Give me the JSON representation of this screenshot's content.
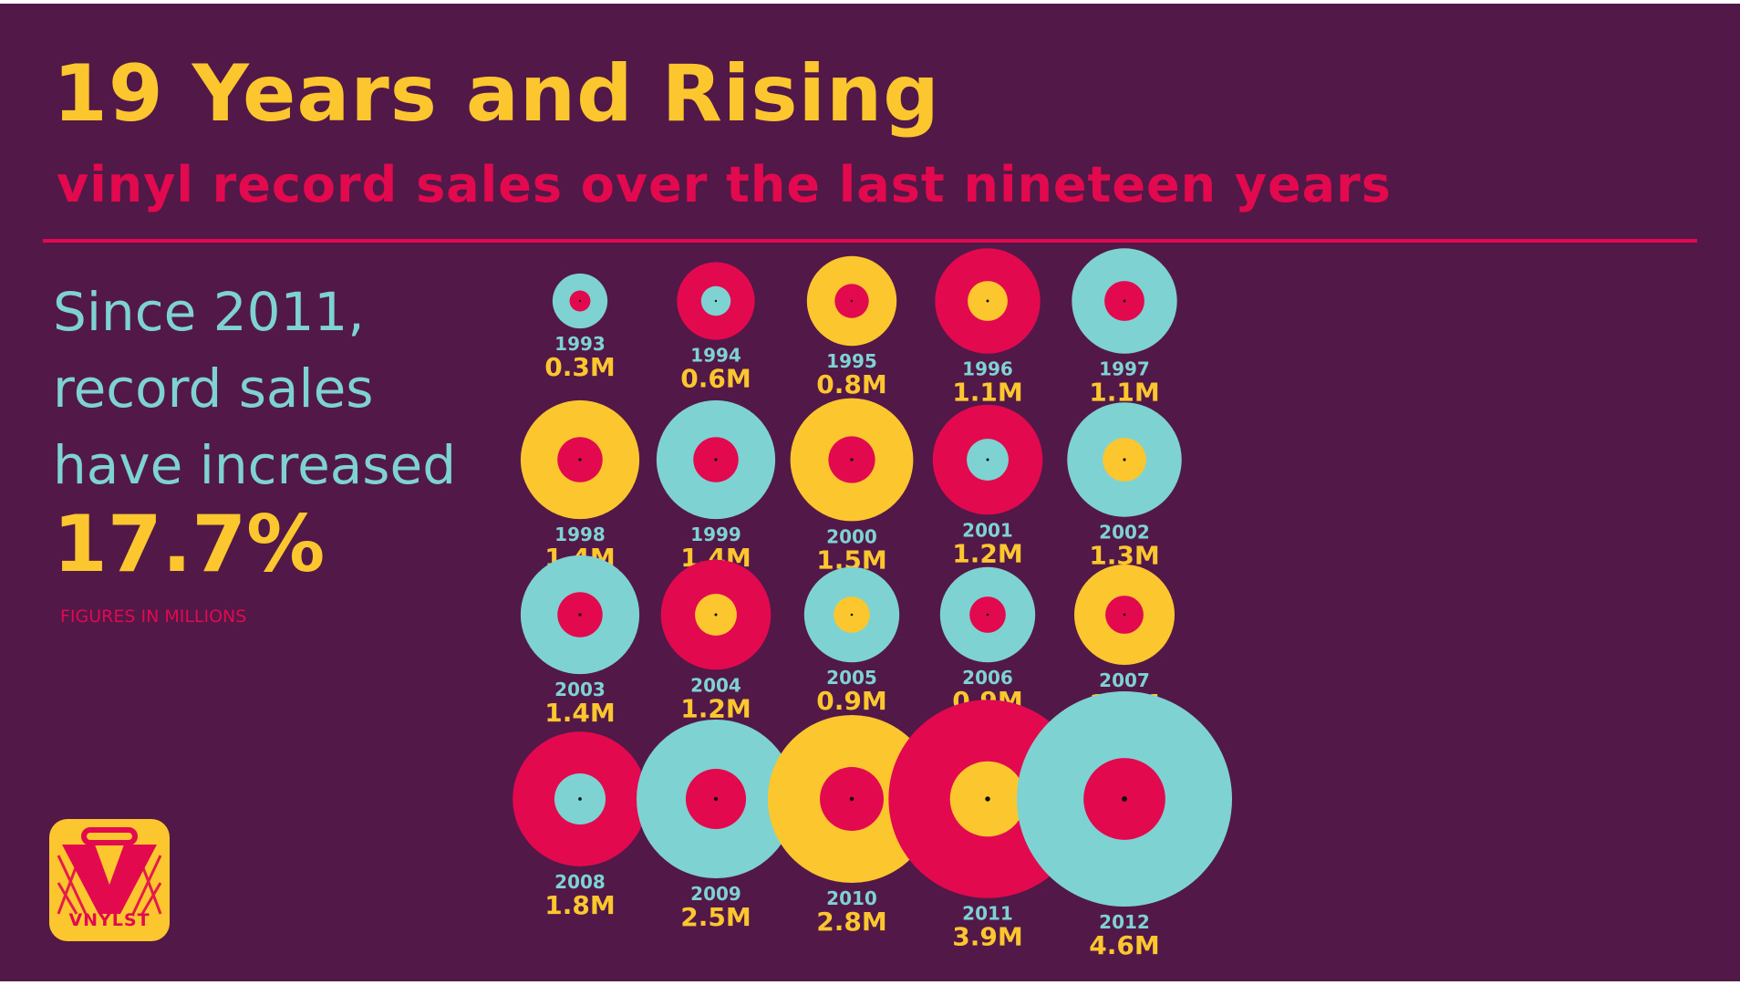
{
  "header": {
    "title": "19 Years and Rising",
    "subtitle": "vinyl record sales over the last nineteen years"
  },
  "callout": {
    "lines": [
      "Since 2011,",
      "record sales",
      "have increased"
    ],
    "percent": "17.7%",
    "note": "FIGURES IN MILLIONS"
  },
  "logo": {
    "text": "VNYLST"
  },
  "colors": {
    "background": "#521848",
    "yellow": "#fbc62e",
    "pink": "#e2094f",
    "teal": "#7ed3d2"
  },
  "chart_data": {
    "type": "bubble",
    "unit": "M",
    "points": [
      {
        "year": "1993",
        "value": 0.3,
        "label": "0.3M",
        "outer": "teal",
        "inner": "pink"
      },
      {
        "year": "1994",
        "value": 0.6,
        "label": "0.6M",
        "outer": "pink",
        "inner": "teal"
      },
      {
        "year": "1995",
        "value": 0.8,
        "label": "0.8M",
        "outer": "yellow",
        "inner": "pink"
      },
      {
        "year": "1996",
        "value": 1.1,
        "label": "1.1M",
        "outer": "pink",
        "inner": "yellow"
      },
      {
        "year": "1997",
        "value": 1.1,
        "label": "1.1M",
        "outer": "teal",
        "inner": "pink"
      },
      {
        "year": "1998",
        "value": 1.4,
        "label": "1.4M",
        "outer": "yellow",
        "inner": "pink"
      },
      {
        "year": "1999",
        "value": 1.4,
        "label": "1.4M",
        "outer": "teal",
        "inner": "pink"
      },
      {
        "year": "2000",
        "value": 1.5,
        "label": "1.5M",
        "outer": "yellow",
        "inner": "pink"
      },
      {
        "year": "2001",
        "value": 1.2,
        "label": "1.2M",
        "outer": "pink",
        "inner": "teal"
      },
      {
        "year": "2002",
        "value": 1.3,
        "label": "1.3M",
        "outer": "teal",
        "inner": "yellow"
      },
      {
        "year": "2003",
        "value": 1.4,
        "label": "1.4M",
        "outer": "teal",
        "inner": "pink"
      },
      {
        "year": "2004",
        "value": 1.2,
        "label": "1.2M",
        "outer": "pink",
        "inner": "yellow"
      },
      {
        "year": "2005",
        "value": 0.9,
        "label": "0.9M",
        "outer": "teal",
        "inner": "yellow"
      },
      {
        "year": "2006",
        "value": 0.9,
        "label": "0.9M",
        "outer": "teal",
        "inner": "pink"
      },
      {
        "year": "2007",
        "value": 1.0,
        "label": "1.0M",
        "outer": "yellow",
        "inner": "pink"
      },
      {
        "year": "2008",
        "value": 1.8,
        "label": "1.8M",
        "outer": "pink",
        "inner": "teal"
      },
      {
        "year": "2009",
        "value": 2.5,
        "label": "2.5M",
        "outer": "teal",
        "inner": "pink"
      },
      {
        "year": "2010",
        "value": 2.8,
        "label": "2.8M",
        "outer": "yellow",
        "inner": "pink"
      },
      {
        "year": "2011",
        "value": 3.9,
        "label": "3.9M",
        "outer": "pink",
        "inner": "yellow"
      },
      {
        "year": "2012",
        "value": 4.6,
        "label": "4.6M",
        "outer": "teal",
        "inner": "pink"
      }
    ]
  }
}
